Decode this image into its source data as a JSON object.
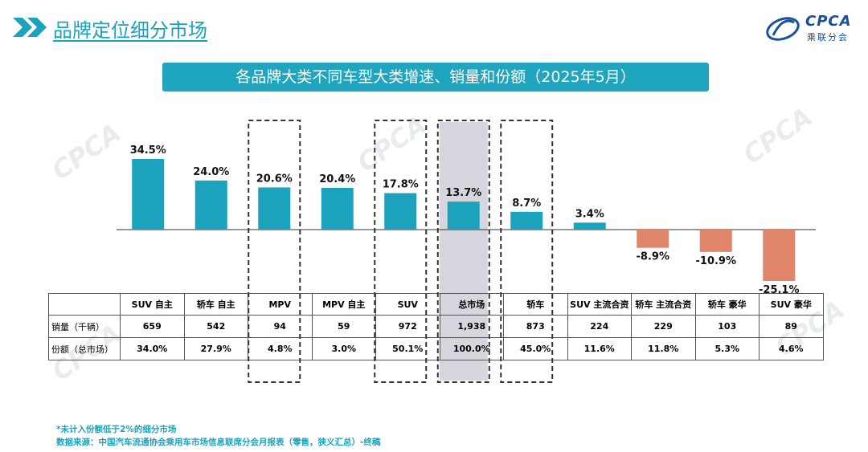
{
  "page_title": "品牌定位细分市场",
  "logo": {
    "brand": "CPCA",
    "sub": "乘联分会"
  },
  "banner_title": "各品牌大类不同车型大类增速、销量和份额（2025年5月）",
  "colors": {
    "positive": "#1ba3bd",
    "negative": "#e0856a",
    "highlight_fill": "#d6d6de",
    "accent": "#20a5be"
  },
  "chart_data": {
    "type": "bar",
    "title": "各品牌大类不同车型大类增速、销量和份额（2025年5月）",
    "categories": [
      "SUV 自主",
      "轿车 自主",
      "MPV",
      "MPV 自主",
      "SUV",
      "总市场",
      "轿车",
      "SUV 主流合资",
      "轿车 主流合资",
      "轿车 豪华",
      "SUV 豪华"
    ],
    "series": [
      {
        "values": [
          34.5,
          24.0,
          20.6,
          20.4,
          17.8,
          13.7,
          8.7,
          3.4,
          -8.9,
          -10.9,
          -25.1
        ]
      }
    ],
    "value_labels": [
      "34.5%",
      "24.0%",
      "20.6%",
      "20.4%",
      "17.8%",
      "13.7%",
      "8.7%",
      "3.4%",
      "-8.9%",
      "-10.9%",
      "-25.1%"
    ],
    "dashed_boxes": [
      "MPV",
      "SUV",
      "总市场",
      "轿车"
    ],
    "highlighted": "总市场",
    "ylim": [
      -27,
      36
    ]
  },
  "table": {
    "rows": [
      {
        "label": "销量（千辆）",
        "values": [
          "659",
          "542",
          "94",
          "59",
          "972",
          "1,938",
          "873",
          "224",
          "229",
          "103",
          "89"
        ]
      },
      {
        "label": "份额（总市场）",
        "values": [
          "34.0%",
          "27.9%",
          "4.8%",
          "3.0%",
          "50.1%",
          "100.0%",
          "45.0%",
          "11.6%",
          "11.8%",
          "5.3%",
          "4.6%"
        ]
      }
    ]
  },
  "footnotes": [
    "*未计入份额低于2%的细分市场",
    "数据来源：中国汽车流通协会乘用车市场信息联席分会月报表（零售，狭义汇总）-终稿"
  ]
}
